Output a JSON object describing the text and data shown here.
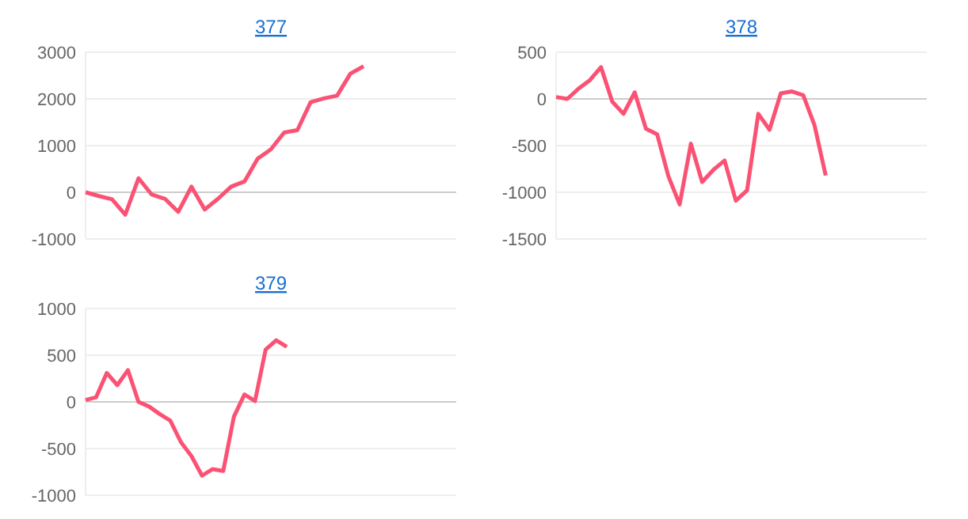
{
  "chart_data": [
    {
      "type": "line",
      "title": "377",
      "categories": [
        null,
        null,
        null,
        null,
        null,
        null,
        null,
        null,
        null,
        null,
        null,
        null,
        null,
        null,
        null,
        null,
        null,
        null,
        null,
        null,
        null,
        null,
        null,
        null,
        null,
        null,
        null,
        null,
        null
      ],
      "series": [
        {
          "color": "#fb5274",
          "values": [
            0,
            -80,
            -150,
            -480,
            300,
            -50,
            -140,
            -420,
            120,
            -370,
            -140,
            120,
            230,
            720,
            920,
            1280,
            1330,
            1930,
            2010,
            2070,
            2540,
            2700,
            null,
            null,
            null,
            null,
            null,
            null,
            null
          ]
        }
      ],
      "ylim": [
        -1000,
        3000
      ],
      "yticks": [
        -1000,
        0,
        1000,
        2000,
        3000
      ],
      "grid": "y",
      "marker": "none"
    },
    {
      "type": "line",
      "title": "378",
      "categories": [
        null,
        null,
        null,
        null,
        null,
        null,
        null,
        null,
        null,
        null,
        null,
        null,
        null,
        null,
        null,
        null,
        null,
        null,
        null,
        null,
        null,
        null,
        null,
        null,
        null,
        null,
        null,
        null,
        null,
        null,
        null,
        null,
        null,
        null
      ],
      "series": [
        {
          "color": "#fb5274",
          "values": [
            20,
            0,
            110,
            200,
            340,
            -30,
            -160,
            70,
            -320,
            -380,
            -830,
            -1130,
            -480,
            -890,
            -760,
            -660,
            -1090,
            -980,
            -160,
            -330,
            60,
            80,
            40,
            -280,
            -820,
            null,
            null,
            null,
            null,
            null,
            null,
            null,
            null,
            null
          ]
        }
      ],
      "ylim": [
        -1500,
        500
      ],
      "yticks": [
        -1500,
        -1000,
        -500,
        0,
        500
      ],
      "grid": "y",
      "marker": "none"
    },
    {
      "type": "line",
      "title": "379",
      "categories": [
        null,
        null,
        null,
        null,
        null,
        null,
        null,
        null,
        null,
        null,
        null,
        null,
        null,
        null,
        null,
        null,
        null,
        null,
        null,
        null,
        null,
        null,
        null,
        null,
        null,
        null,
        null,
        null,
        null,
        null,
        null,
        null,
        null,
        null,
        null,
        null
      ],
      "series": [
        {
          "color": "#fb5274",
          "values": [
            20,
            50,
            310,
            180,
            340,
            0,
            -50,
            -130,
            -200,
            -430,
            -580,
            -790,
            -720,
            -740,
            -160,
            80,
            10,
            560,
            660,
            590,
            null,
            null,
            null,
            null,
            null,
            null,
            null,
            null,
            null,
            null,
            null,
            null,
            null,
            null,
            null,
            null
          ]
        }
      ],
      "ylim": [
        -1000,
        1000
      ],
      "yticks": [
        -1000,
        -500,
        0,
        500,
        1000
      ],
      "grid": "y",
      "marker": "none"
    }
  ]
}
